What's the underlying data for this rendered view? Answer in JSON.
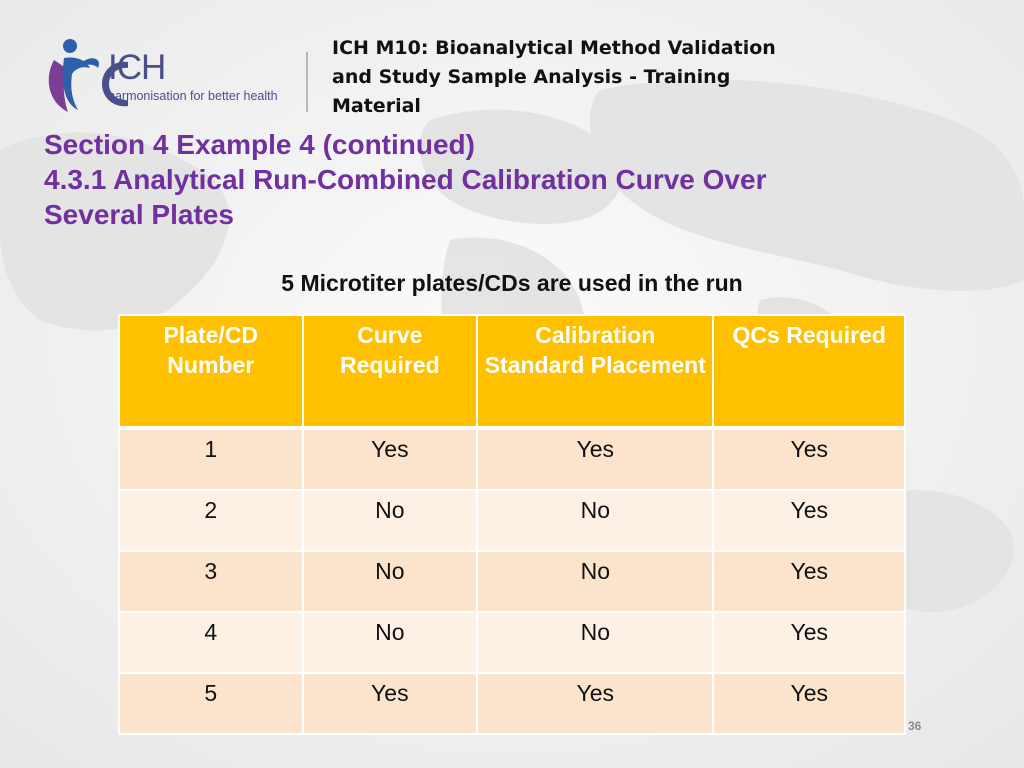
{
  "header": {
    "logo_text": "ICH",
    "logo_tagline": "harmonisation for better health",
    "title": "ICH M10: Bioanalytical Method Validation and Study Sample Analysis - Training Material"
  },
  "section": {
    "line1": "Section 4 Example 4 (continued)",
    "line2": "4.3.1 Analytical Run-Combined Calibration Curve Over",
    "line3": "Several Plates"
  },
  "table_caption": "5 Microtiter plates/CDs are used in the run",
  "table": {
    "headers": [
      "Plate/CD Number",
      "Curve Required",
      "Calibration Standard Placement",
      "QCs Required"
    ],
    "rows": [
      [
        "1",
        "Yes",
        "Yes",
        "Yes"
      ],
      [
        "2",
        "No",
        "No",
        "Yes"
      ],
      [
        "3",
        "No",
        "No",
        "Yes"
      ],
      [
        "4",
        "No",
        "No",
        "Yes"
      ],
      [
        "5",
        "Yes",
        "Yes",
        "Yes"
      ]
    ]
  },
  "page_number": "36",
  "colors": {
    "title_purple": "#7030a0",
    "header_amber": "#ffc000",
    "row_dark": "#fbe3cc",
    "row_light": "#fdf1e6",
    "logo_navy": "#4a4f8c"
  }
}
